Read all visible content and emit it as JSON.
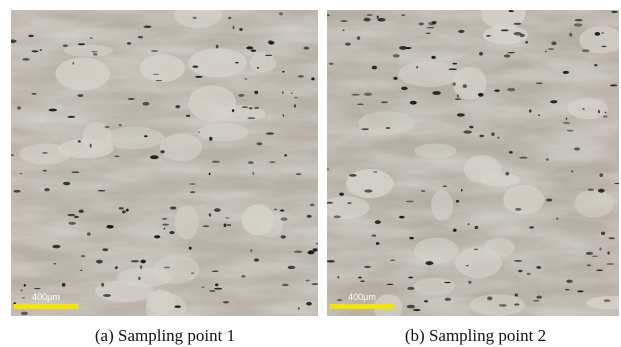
{
  "panels": [
    {
      "scale_bar": "400μm",
      "caption": "(a) Sampling point 1"
    },
    {
      "scale_bar": "400μm",
      "caption": "(b) Sampling point 2"
    }
  ]
}
